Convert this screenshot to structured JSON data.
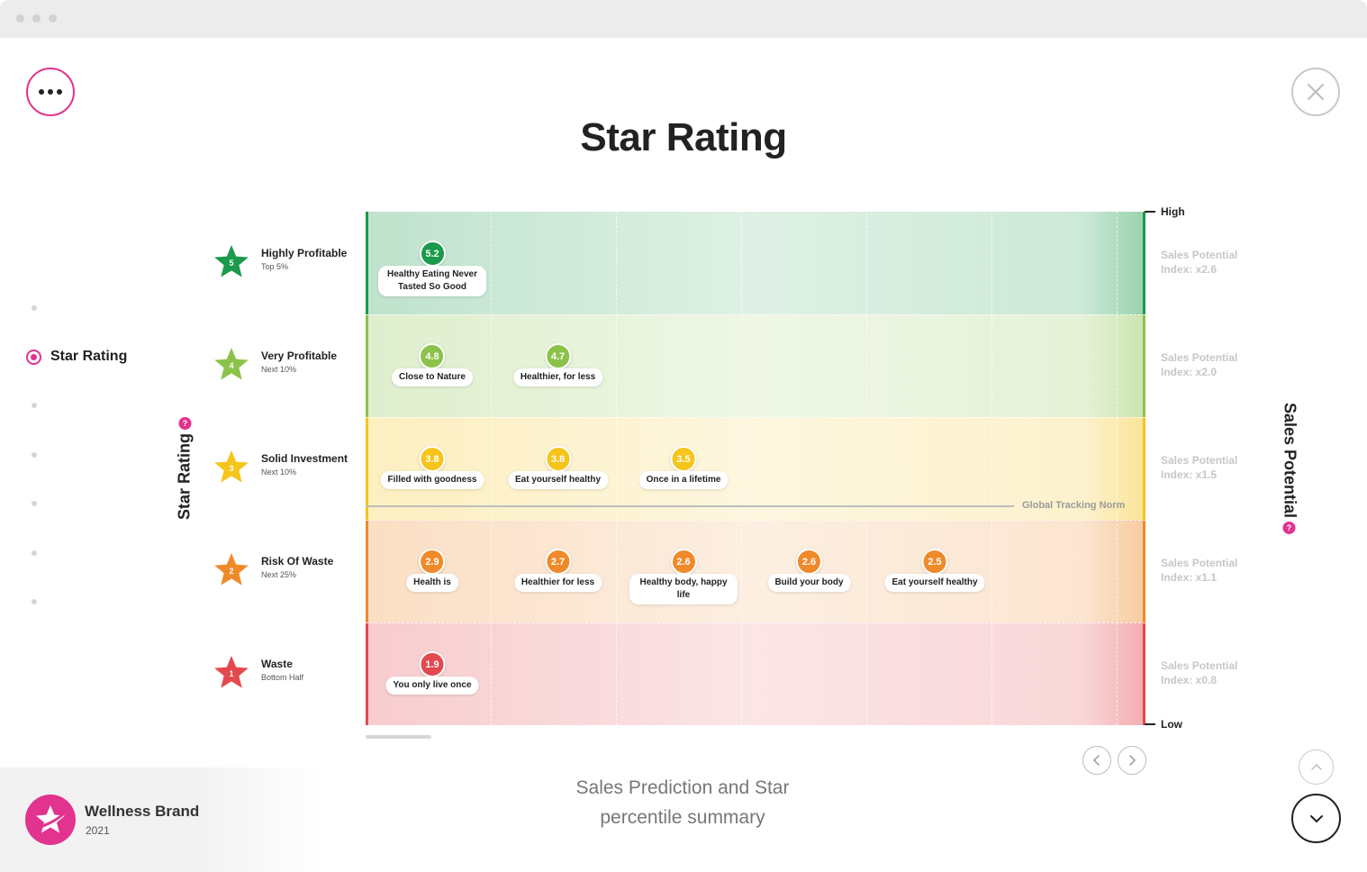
{
  "title": "Star Rating",
  "nav": {
    "active_label": "Star Rating"
  },
  "axis": {
    "left_label": "Star Rating",
    "right_label": "Sales Potential",
    "right_high": "High",
    "right_low": "Low",
    "help_glyph": "?"
  },
  "norm_label": "Global Tracking Norm",
  "caption": {
    "line1": "Sales Prediction and Star",
    "line2": "percentile summary"
  },
  "brand": {
    "name": "Wellness Brand",
    "year": "2021"
  },
  "icons": {
    "menu": "more-horizontal-icon",
    "close": "close-icon",
    "prev": "chevron-left-icon",
    "next": "chevron-right-icon",
    "up": "chevron-up-icon",
    "down": "chevron-down-icon",
    "star": "star-icon"
  },
  "chart_data": {
    "type": "table",
    "bands": [
      {
        "stars": "5",
        "name": "Highly Profitable",
        "sub": "Top 5%",
        "index": "Sales Potential Index: x2.6",
        "color": "#1a9a4a"
      },
      {
        "stars": "4",
        "name": "Very Profitable",
        "sub": "Next 10%",
        "index": "Sales Potential Index: x2.0",
        "color": "#8bc34a"
      },
      {
        "stars": "3",
        "name": "Solid Investment",
        "sub": "Next 10%",
        "index": "Sales Potential Index: x1.5",
        "color": "#f6c41b"
      },
      {
        "stars": "2",
        "name": "Risk Of Waste",
        "sub": "Next 25%",
        "index": "Sales Potential Index: x1.1",
        "color": "#ef8a2a"
      },
      {
        "stars": "1",
        "name": "Waste",
        "sub": "Bottom Half",
        "index": "Sales Potential Index: x0.8",
        "color": "#e4484f"
      }
    ],
    "items": [
      {
        "band": 0,
        "col": 0,
        "score": "5.2",
        "label": "Healthy Eating Never Tasted So Good"
      },
      {
        "band": 1,
        "col": 0,
        "score": "4.8",
        "label": "Close to Nature"
      },
      {
        "band": 1,
        "col": 1,
        "score": "4.7",
        "label": "Healthier, for less"
      },
      {
        "band": 2,
        "col": 0,
        "score": "3.8",
        "label": "Filled with goodness"
      },
      {
        "band": 2,
        "col": 1,
        "score": "3.8",
        "label": "Eat yourself healthy"
      },
      {
        "band": 2,
        "col": 2,
        "score": "3.5",
        "label": "Once in a lifetime"
      },
      {
        "band": 3,
        "col": 0,
        "score": "2.9",
        "label": "Health is"
      },
      {
        "band": 3,
        "col": 1,
        "score": "2.7",
        "label": "Healthier for less"
      },
      {
        "band": 3,
        "col": 2,
        "score": "2.6",
        "label": "Healthy body, happy life"
      },
      {
        "band": 3,
        "col": 3,
        "score": "2.6",
        "label": "Build your body"
      },
      {
        "band": 3,
        "col": 4,
        "score": "2.5",
        "label": "Eat yourself healthy"
      },
      {
        "band": 4,
        "col": 0,
        "score": "1.9",
        "label": "You only live once"
      }
    ],
    "norm": 2.9,
    "y_range": [
      1,
      5.2
    ]
  }
}
